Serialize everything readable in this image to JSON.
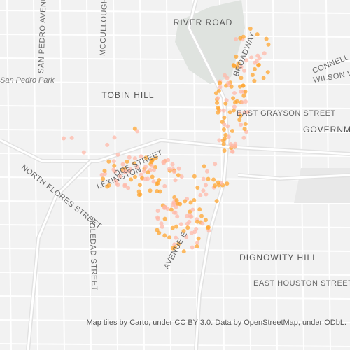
{
  "map": {
    "labels": {
      "river_road": "RIVER ROAD",
      "san_pedro_park": "San Pedro Park",
      "tobin_hill": "TOBIN HILL",
      "east_grayson_street": "EAST GRAYSON STREET",
      "government_hill": "GOVERNMENT HILL",
      "connell_road": "CONNELL ROAD",
      "wilson": "WILSON W",
      "broadway": "BROADWAY",
      "north_flores_street": "NORTH FLORES STREET",
      "soledad_street": "SOLEDAD STREET",
      "dignowity_hill": "DIGNOWITY HILL",
      "east_houston_street": "EAST HOUSTON STREET",
      "san_pedro_avenue": "SAN PEDRO AVENUE",
      "mccullough_avenue": "MCCULLOUGH AVENUE",
      "avenue_e": "AVENUE E",
      "lexington": "LEXINGTON",
      "ode_street": "ODE STREET"
    },
    "attribution": "Map tiles by Carto, under CC BY 3.0. Data by OpenStreetMap, under ODbL."
  }
}
